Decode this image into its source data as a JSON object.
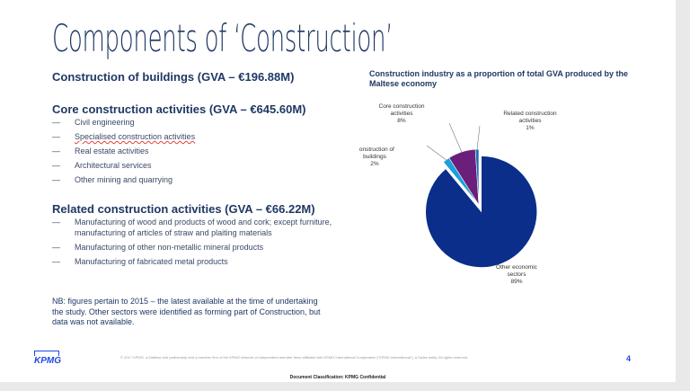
{
  "title": "Components of ‘Construction’",
  "sections": [
    {
      "heading": "Construction of buildings (GVA – €196.88M)",
      "items": []
    },
    {
      "heading": "Core construction activities (GVA – €645.60M)",
      "items": [
        "Civil engineering",
        "Specialised construction activities",
        "Real estate activities",
        "Architectural services",
        "Other mining and quarrying"
      ]
    },
    {
      "heading": "Related construction activities (GVA – €66.22M)",
      "items": [
        "Manufacturing of wood and products of wood and cork; except furniture, manufacturing of articles of straw and plaiting materials",
        "Manufacturing of other non-metallic mineral products",
        "Manufacturing of fabricated metal products"
      ]
    }
  ],
  "note": "NB: figures pertain to 2015 – the latest available at the time of undertaking the study. Other sectors were identified as forming part of Construction, but data was not available.",
  "chart_data": {
    "type": "pie",
    "title": "Construction industry as a proportion of total GVA produced by the Maltese economy",
    "slices": [
      {
        "label": "Other economic sectors",
        "value": 89,
        "display": "89%",
        "color": "#0a2e8a",
        "exploded": true
      },
      {
        "label": "Construction of buildings",
        "value": 2,
        "display": "2%",
        "color": "#1aa0d8"
      },
      {
        "label": "Core construction activities",
        "value": 8,
        "display": "8%",
        "color": "#6b1f7a"
      },
      {
        "label": "Related construction activities",
        "value": 1,
        "display": "1%",
        "color": "#1e6bb8"
      }
    ]
  },
  "footer": {
    "logo": "KPMG",
    "copyright": "© 2017 KPMG, a Maltese civil partnership and a member firm of the KPMG network of independent member firms affiliated with KPMG International Cooperative (\"KPMG International\"), a Swiss entity. All rights reserved.",
    "page_number": "4",
    "classification": "Document Classification: KPMG Confidential"
  }
}
